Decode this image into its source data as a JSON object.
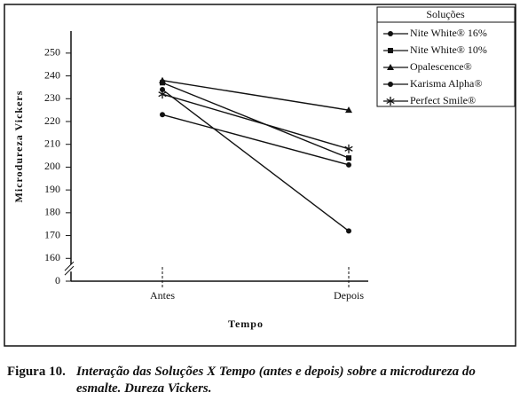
{
  "chart_data": {
    "type": "line",
    "y_label": "Microdureza Vickers",
    "x_label": "Tempo",
    "legend_title": "Soluções",
    "legend_position": "upper right",
    "categories": [
      "Antes",
      "Depois"
    ],
    "series": [
      {
        "name": "Nite White® 16%",
        "color": "#111111",
        "marker": "circle",
        "values": [
          234,
          172
        ]
      },
      {
        "name": "Nite White® 10%",
        "color": "#111111",
        "marker": "square",
        "values": [
          237,
          204
        ]
      },
      {
        "name": "Opalescence®",
        "color": "#111111",
        "marker": "triangle",
        "values": [
          238,
          225
        ]
      },
      {
        "name": "Karisma Alpha®",
        "color": "#111111",
        "marker": "circle",
        "values": [
          223,
          201
        ]
      },
      {
        "name": "Perfect Smile®",
        "color": "#111111",
        "marker": "star",
        "values": [
          232,
          208
        ]
      }
    ],
    "ylim": [
      0,
      255
    ],
    "ybreak": [
      0,
      150
    ],
    "yticks": [
      0,
      160,
      170,
      180,
      190,
      200,
      210,
      220,
      230,
      240,
      250
    ],
    "caption_label": "Figura 10.",
    "caption": "Interação das Soluções X Tempo (antes e depois) sobre a microdureza do esmalte. Dureza Vickers."
  }
}
